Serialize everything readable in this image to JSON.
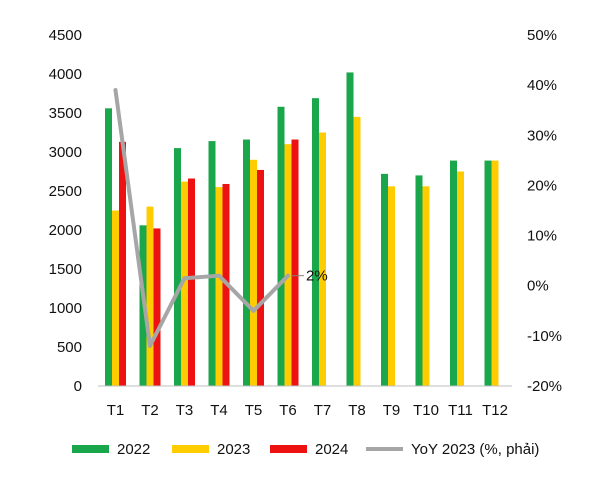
{
  "chart_data": {
    "type": "bar",
    "categories": [
      "T1",
      "T2",
      "T3",
      "T4",
      "T5",
      "T6",
      "T7",
      "T8",
      "T9",
      "T10",
      "T11",
      "T12"
    ],
    "series": [
      {
        "name": "2022",
        "color": "#1aa64a",
        "axis": "left",
        "kind": "bar",
        "values": [
          3560,
          2060,
          3050,
          3140,
          3160,
          3580,
          3690,
          4020,
          2720,
          2700,
          2890,
          2890
        ]
      },
      {
        "name": "2023",
        "color": "#ffcc00",
        "axis": "left",
        "kind": "bar",
        "values": [
          2250,
          2300,
          2620,
          2550,
          2900,
          3100,
          3250,
          3450,
          2560,
          2560,
          2750,
          2890
        ]
      },
      {
        "name": "2024",
        "color": "#ee1111",
        "axis": "left",
        "kind": "bar",
        "values": [
          3130,
          2020,
          2660,
          2590,
          2770,
          3160,
          null,
          null,
          null,
          null,
          null,
          null
        ]
      },
      {
        "name": "YoY 2023 (%, phải)",
        "color": "#a6a6a6",
        "axis": "right",
        "kind": "line",
        "values": [
          39,
          -12,
          1.5,
          2,
          -5,
          2,
          null,
          null,
          null,
          null,
          null,
          null
        ]
      }
    ],
    "left_axis": {
      "min": 0,
      "max": 4500,
      "step": 500,
      "ticks": [
        "0",
        "500",
        "1000",
        "1500",
        "2000",
        "2500",
        "3000",
        "3500",
        "4000",
        "4500"
      ]
    },
    "right_axis": {
      "min": -20,
      "max": 50,
      "step": 10,
      "ticks": [
        "-20%",
        "-10%",
        "0%",
        "10%",
        "20%",
        "30%",
        "40%",
        "50%"
      ]
    },
    "annotation": {
      "text": "2%",
      "category": "T6",
      "value": 2
    },
    "grid": false,
    "legend_position": "bottom"
  }
}
